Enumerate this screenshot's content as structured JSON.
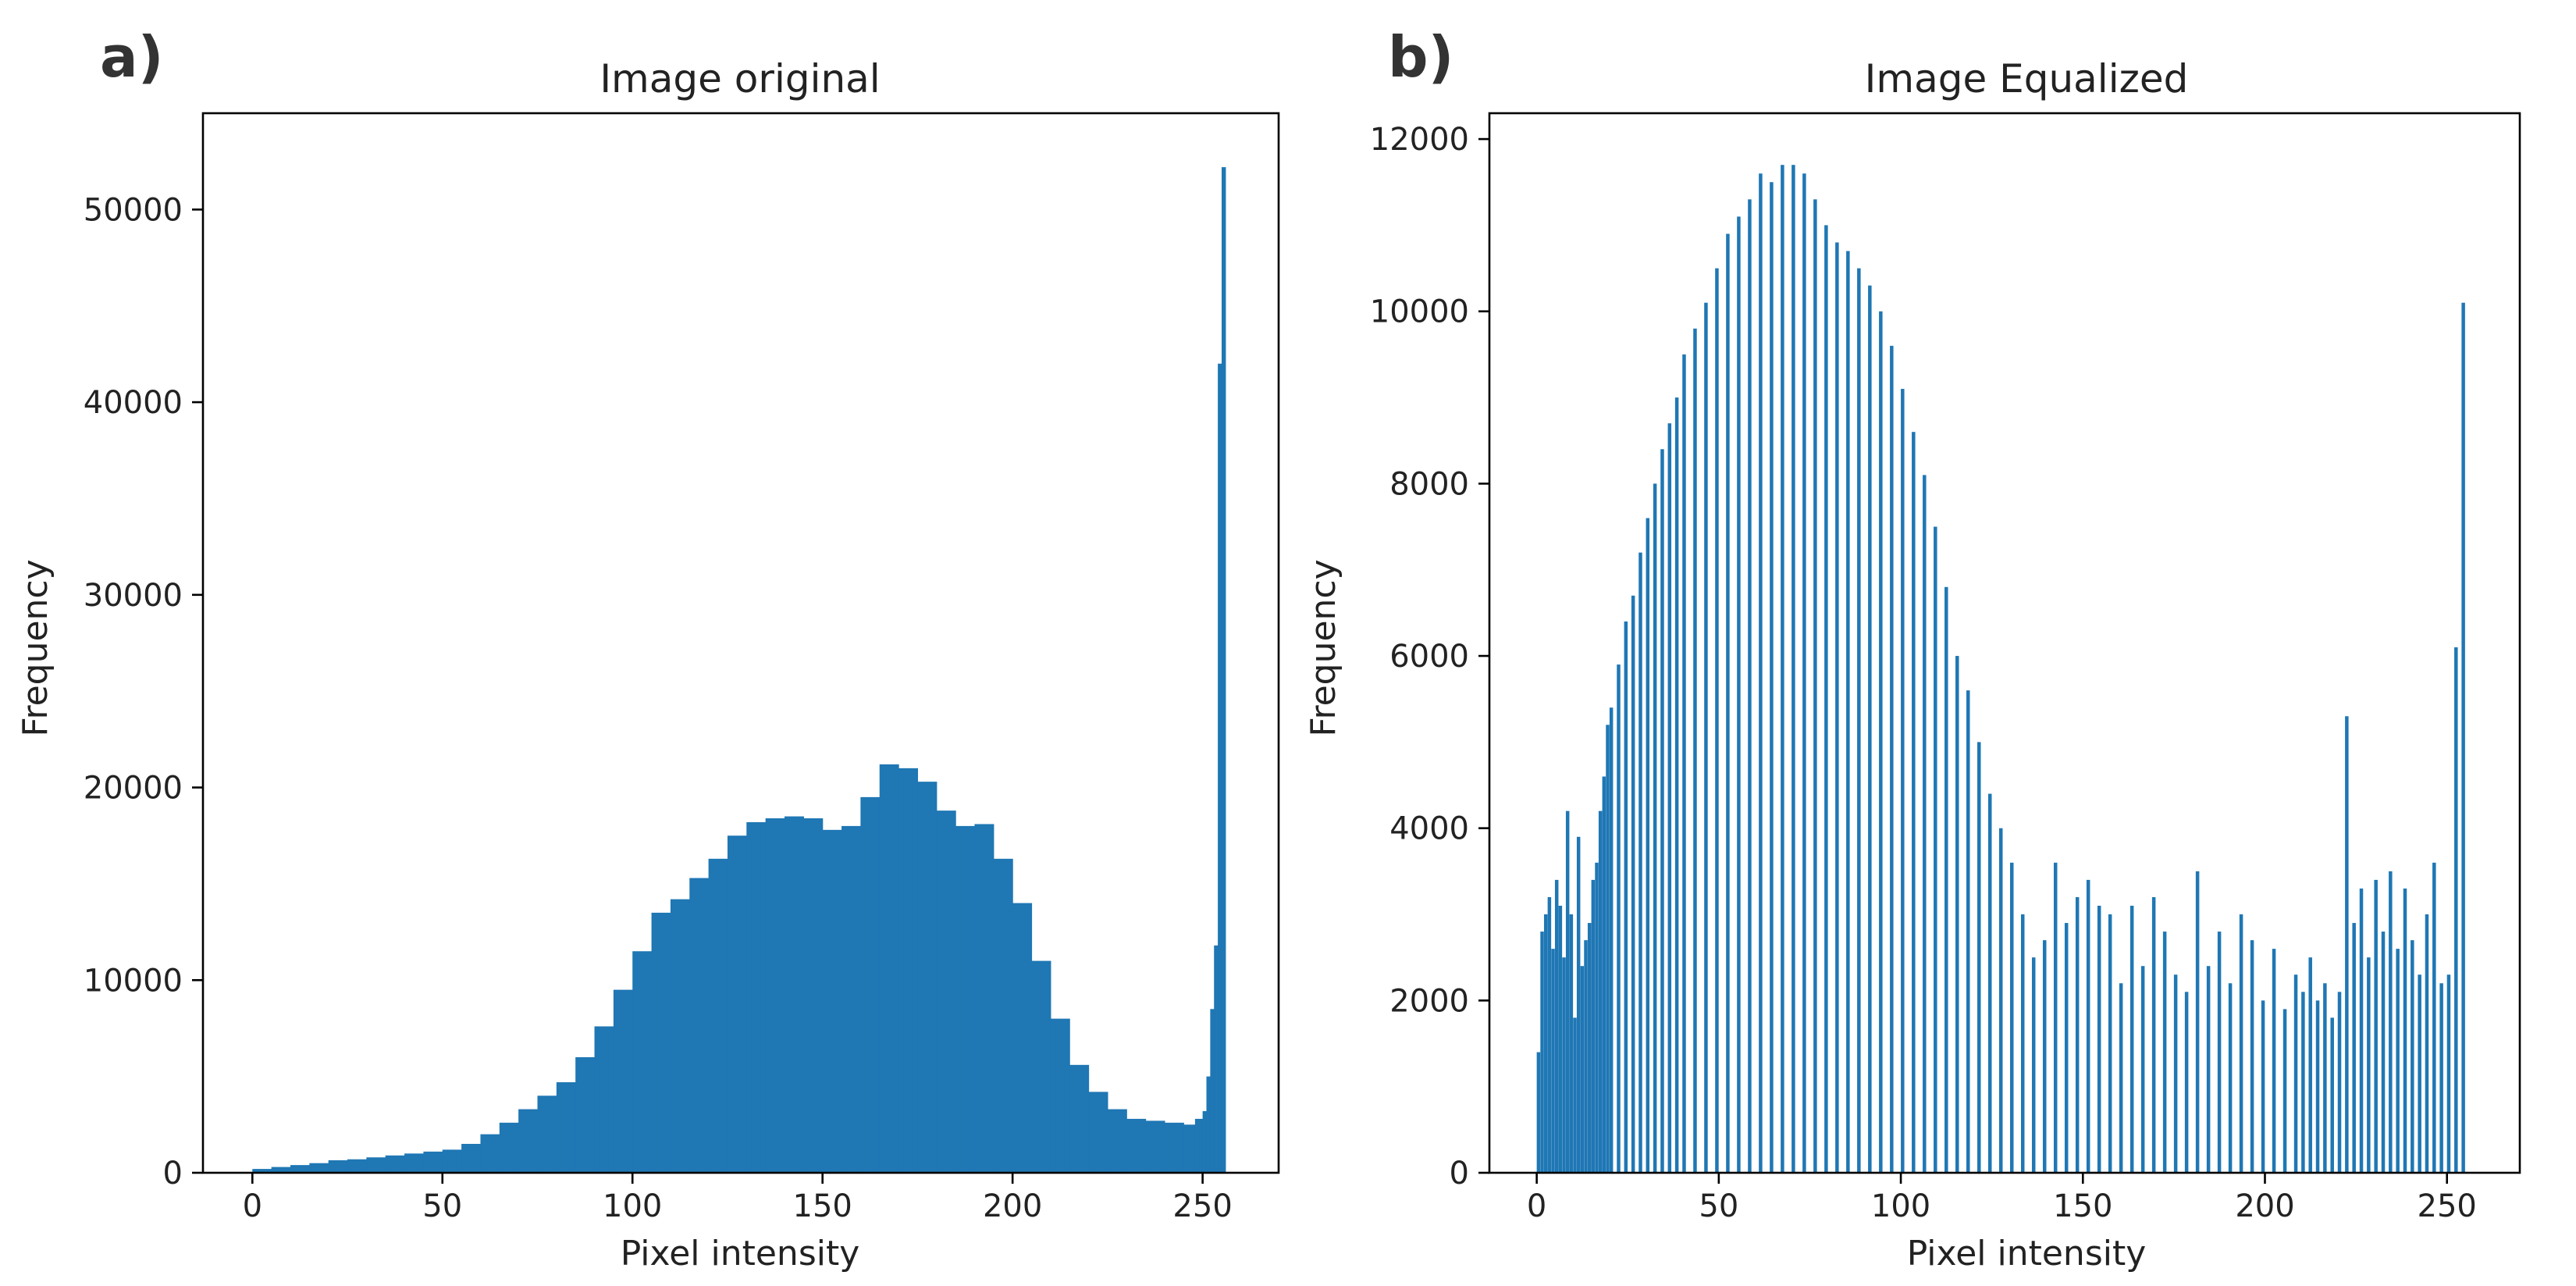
{
  "panels": [
    {
      "label": "a)",
      "chart_data": {
        "type": "bar",
        "title": "Image original",
        "xlabel": "Pixel intensity",
        "ylabel": "Frequency",
        "xlim": [
          -13,
          270
        ],
        "ylim": [
          0,
          55000
        ],
        "xticks": [
          0,
          50,
          100,
          150,
          200,
          250
        ],
        "yticks": [
          0,
          10000,
          20000,
          30000,
          40000,
          50000
        ],
        "bar_color": "#1f77b4",
        "grid": false,
        "x": [
          0,
          5,
          10,
          15,
          20,
          25,
          30,
          35,
          40,
          45,
          50,
          55,
          60,
          65,
          70,
          75,
          80,
          85,
          90,
          95,
          100,
          105,
          110,
          115,
          120,
          125,
          130,
          135,
          140,
          145,
          150,
          155,
          160,
          165,
          170,
          175,
          180,
          185,
          190,
          195,
          200,
          205,
          210,
          215,
          220,
          225,
          230,
          235,
          240,
          245,
          248,
          250,
          251,
          252,
          253,
          254,
          255
        ],
        "values": [
          200,
          300,
          400,
          500,
          650,
          700,
          800,
          900,
          1000,
          1100,
          1200,
          1500,
          2000,
          2600,
          3300,
          4000,
          4700,
          6000,
          7600,
          9500,
          11500,
          13500,
          14200,
          15300,
          16300,
          17500,
          18200,
          18400,
          18500,
          18400,
          17800,
          18000,
          19500,
          21200,
          21000,
          20300,
          18800,
          18000,
          18100,
          16300,
          14000,
          11000,
          8000,
          5600,
          4200,
          3300,
          2800,
          2700,
          2600,
          2500,
          2800,
          3200,
          5000,
          8500,
          11800,
          42000,
          52200
        ]
      }
    },
    {
      "label": "b)",
      "chart_data": {
        "type": "bar",
        "title": "Image Equalized",
        "xlabel": "Pixel intensity",
        "ylabel": "Frequency",
        "xlim": [
          -13,
          270
        ],
        "ylim": [
          0,
          12300
        ],
        "xticks": [
          0,
          50,
          100,
          150,
          200,
          250
        ],
        "yticks": [
          0,
          2000,
          4000,
          6000,
          8000,
          10000,
          12000
        ],
        "bar_color": "#1f77b4",
        "grid": false,
        "x": [
          0,
          1,
          2,
          3,
          4,
          5,
          6,
          7,
          8,
          9,
          10,
          11,
          12,
          13,
          14,
          15,
          16,
          17,
          18,
          19,
          20,
          22,
          24,
          26,
          28,
          30,
          32,
          34,
          36,
          38,
          40,
          43,
          46,
          49,
          52,
          55,
          58,
          61,
          64,
          67,
          70,
          73,
          76,
          79,
          82,
          85,
          88,
          91,
          94,
          97,
          100,
          103,
          106,
          109,
          112,
          115,
          118,
          121,
          124,
          127,
          130,
          133,
          136,
          139,
          142,
          145,
          148,
          151,
          154,
          157,
          160,
          163,
          166,
          169,
          172,
          175,
          178,
          181,
          184,
          187,
          190,
          193,
          196,
          199,
          202,
          205,
          208,
          210,
          212,
          214,
          216,
          218,
          220,
          222,
          224,
          226,
          228,
          230,
          232,
          234,
          236,
          238,
          240,
          242,
          244,
          246,
          248,
          250,
          252,
          254,
          256
        ],
        "values": [
          1400,
          2800,
          3000,
          3200,
          2600,
          3400,
          3100,
          2500,
          4200,
          3000,
          1800,
          3900,
          2400,
          2700,
          2900,
          3400,
          3600,
          4200,
          4600,
          5200,
          5400,
          5900,
          6400,
          6700,
          7200,
          7600,
          8000,
          8400,
          8700,
          9000,
          9500,
          9800,
          10100,
          10500,
          10900,
          11100,
          11300,
          11600,
          11500,
          11700,
          11700,
          11600,
          11300,
          11000,
          10800,
          10700,
          10500,
          10300,
          10000,
          9600,
          9100,
          8600,
          8100,
          7500,
          6800,
          6000,
          5600,
          5000,
          4400,
          4000,
          3600,
          3000,
          2500,
          2700,
          3600,
          2900,
          3200,
          3400,
          3100,
          3000,
          2200,
          3100,
          2400,
          3200,
          2800,
          2300,
          2100,
          3500,
          2400,
          2800,
          2200,
          3000,
          2700,
          2000,
          2600,
          1900,
          2300,
          2100,
          2500,
          2000,
          2200,
          1800,
          2100,
          5300,
          2900,
          3300,
          2500,
          3400,
          2800,
          3500,
          2600,
          3300,
          2700,
          2300,
          3000,
          3600,
          2200,
          2300,
          6100,
          10100,
          0
        ]
      }
    }
  ]
}
